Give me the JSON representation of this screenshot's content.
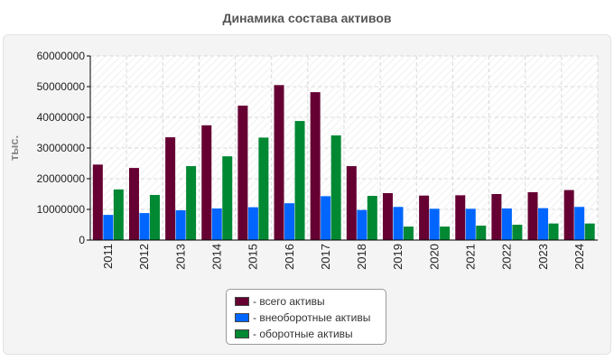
{
  "chart_data": {
    "type": "bar",
    "title": "Динамика состава активов",
    "ylabel": "тыс.",
    "xlabel": "",
    "ylim": [
      0,
      60000000
    ],
    "yticks": [
      0,
      10000000,
      20000000,
      30000000,
      40000000,
      50000000,
      60000000
    ],
    "grid": true,
    "legend_position": "bottom-center",
    "categories": [
      "2011",
      "2012",
      "2013",
      "2014",
      "2015",
      "2016",
      "2017",
      "2018",
      "2019",
      "2020",
      "2021",
      "2022",
      "2023",
      "2024"
    ],
    "series": [
      {
        "name": "- всего активы",
        "color": "#660033",
        "values": [
          24600000,
          23500000,
          33500000,
          37400000,
          43800000,
          50500000,
          48200000,
          24100000,
          15300000,
          14500000,
          14600000,
          15000000,
          15600000,
          16300000
        ]
      },
      {
        "name": "- внеоборотные активы",
        "color": "#0066ff",
        "values": [
          8200000,
          8800000,
          9700000,
          10300000,
          10700000,
          12000000,
          14300000,
          9800000,
          10800000,
          10200000,
          10200000,
          10300000,
          10400000,
          10800000
        ]
      },
      {
        "name": "- оборотные активы",
        "color": "#008833",
        "values": [
          16500000,
          14700000,
          24100000,
          27300000,
          33400000,
          38800000,
          34100000,
          14400000,
          4400000,
          4400000,
          4700000,
          5000000,
          5400000,
          5400000
        ]
      }
    ]
  }
}
